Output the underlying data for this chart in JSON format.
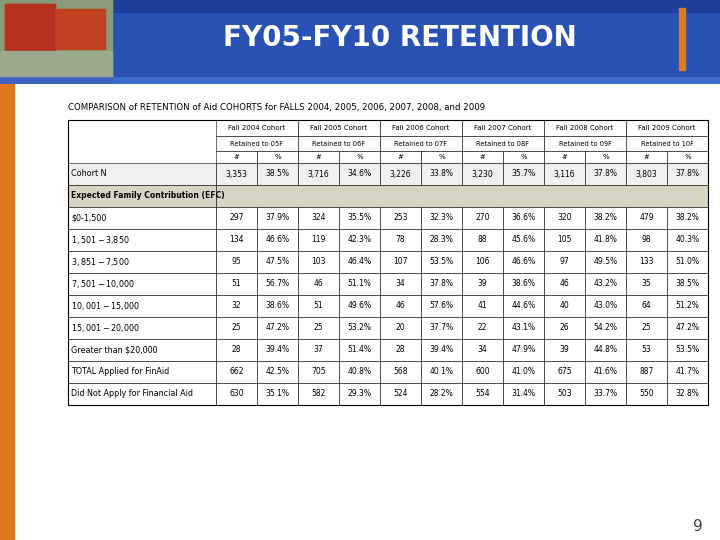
{
  "title": "FY05-FY10 RETENTION",
  "subtitle": "COMPARISON of RETENTION of Aid COHORTS for FALLS 2004, 2005, 2006, 2007, 2008, and 2009",
  "header_bg": "#1e3f99",
  "header_bg2": "#2a52b5",
  "header_strip": "#3d6acc",
  "header_text_color": "#ffffff",
  "orange_accent": "#e07820",
  "body_bg": "#ffffff",
  "page_number": "9",
  "col_headers_row1": [
    "Fall 2004 Cohort",
    "Fall 2005 Cohort",
    "Fall 2006 Cohort",
    "Fall 2007 Cohort",
    "Fall 2008 Cohort",
    "Fall 2009 Cohort"
  ],
  "col_headers_row2": [
    "Retained to 05F",
    "Retained to 06F",
    "Retained to 07F",
    "Retained to 08F",
    "Retained to 09F",
    "Retained to 10F"
  ],
  "row_labels": [
    "Cohort N",
    "Expected Family Contribution (EFC)",
    "$0-1,500",
    "$1,501-$3,850",
    "$3,851-$7,500",
    "$7,501-$10,000",
    "$10,001-$15,000",
    "$15,001-$20,000",
    "Greater than $20,000",
    "TOTAL Applied for FinAid",
    "Did Not Apply for Financial Aid"
  ],
  "table_data": [
    [
      "3,353",
      "38.5%",
      "3,716",
      "34.6%",
      "3,226",
      "33.8%",
      "3,230",
      "35.7%",
      "3,116",
      "37.8%",
      "3,803",
      "37.8%"
    ],
    [
      "",
      "",
      "",
      "",
      "",
      "",
      "",
      "",
      "",
      "",
      "",
      ""
    ],
    [
      "297",
      "37.9%",
      "324",
      "35.5%",
      "253",
      "32.3%",
      "270",
      "36.6%",
      "320",
      "38.2%",
      "479",
      "38.2%"
    ],
    [
      "134",
      "46.6%",
      "119",
      "42.3%",
      "78",
      "28.3%",
      "88",
      "45.6%",
      "105",
      "41.8%",
      "98",
      "40.3%"
    ],
    [
      "95",
      "47.5%",
      "103",
      "46.4%",
      "107",
      "53.5%",
      "106",
      "46.6%",
      "97",
      "49.5%",
      "133",
      "51.0%"
    ],
    [
      "51",
      "56.7%",
      "46",
      "51.1%",
      "34",
      "37.8%",
      "39",
      "38.6%",
      "46",
      "43.2%",
      "35",
      "38.5%"
    ],
    [
      "32",
      "38.6%",
      "51",
      "49.6%",
      "46",
      "57.6%",
      "41",
      "44.6%",
      "40",
      "43.0%",
      "64",
      "51.2%"
    ],
    [
      "25",
      "47.2%",
      "25",
      "53.2%",
      "20",
      "37.7%",
      "22",
      "43.1%",
      "26",
      "54.2%",
      "25",
      "47.2%"
    ],
    [
      "28",
      "39.4%",
      "37",
      "51.4%",
      "28",
      "39.4%",
      "34",
      "47.9%",
      "39",
      "44.8%",
      "53",
      "53.5%"
    ],
    [
      "662",
      "42.5%",
      "705",
      "40.8%",
      "568",
      "40.1%",
      "600",
      "41.0%",
      "675",
      "41.6%",
      "887",
      "41.7%"
    ],
    [
      "630",
      "35.1%",
      "582",
      "29.3%",
      "524",
      "28.2%",
      "554",
      "31.4%",
      "503",
      "33.7%",
      "550",
      "32.8%"
    ]
  ],
  "efc_section_bg": "#d9d5c5",
  "text_color": "#000000",
  "img_placeholder": "#7a8a6a",
  "img_dark": "#5a3a2a"
}
